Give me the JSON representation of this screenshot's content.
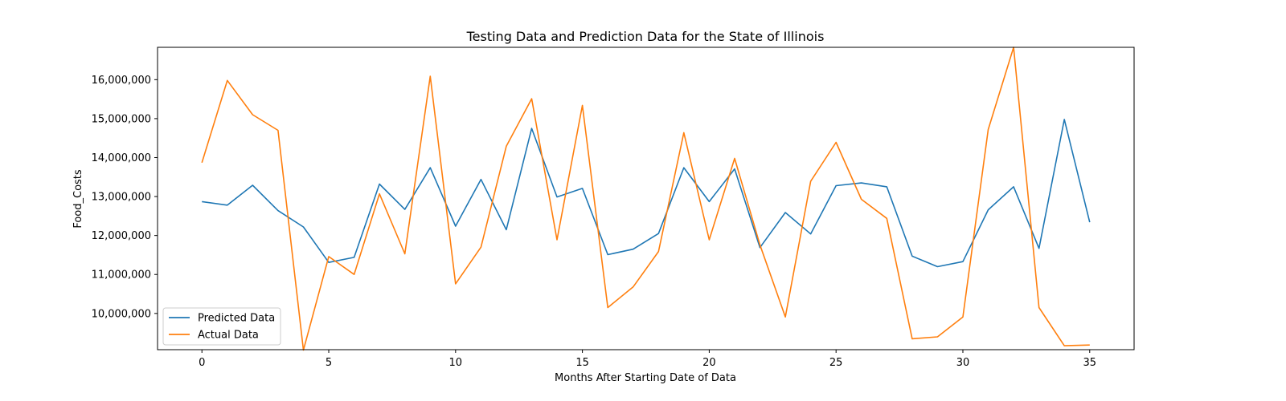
{
  "chart_data": {
    "type": "line",
    "title": "Testing Data and Prediction Data for the State of Illinois",
    "xlabel": "Months After Starting Date of Data",
    "ylabel": "Food_Costs",
    "xlim": [
      -1.75,
      36.75
    ],
    "ylim": [
      9070000,
      16830000
    ],
    "x_ticks": [
      0,
      5,
      10,
      15,
      20,
      25,
      30,
      35
    ],
    "y_ticks": [
      10000000,
      11000000,
      12000000,
      13000000,
      14000000,
      15000000,
      16000000
    ],
    "y_tick_labels": [
      "10,000,000",
      "11,000,000",
      "12,000,000",
      "13,000,000",
      "14,000,000",
      "15,000,000",
      "16,000,000"
    ],
    "legend_position": "bottom-left",
    "grid": false,
    "x": [
      0,
      1,
      2,
      3,
      4,
      5,
      6,
      7,
      8,
      9,
      10,
      11,
      12,
      13,
      14,
      15,
      16,
      17,
      18,
      19,
      20,
      21,
      22,
      23,
      24,
      25,
      26,
      27,
      28,
      29,
      30,
      31,
      32,
      33,
      34,
      35
    ],
    "series": [
      {
        "name": "Predicted Data",
        "color": "#1f77b4",
        "values": [
          12870000,
          12780000,
          13290000,
          12640000,
          12220000,
          11310000,
          11440000,
          13320000,
          12670000,
          13740000,
          12240000,
          13440000,
          12150000,
          14750000,
          12990000,
          13210000,
          11510000,
          11650000,
          12050000,
          13740000,
          12870000,
          13710000,
          11690000,
          12590000,
          12040000,
          13280000,
          13350000,
          13250000,
          11470000,
          11200000,
          11330000,
          12660000,
          13250000,
          11670000,
          14980000,
          12340000
        ]
      },
      {
        "name": "Actual Data",
        "color": "#ff7f0e",
        "values": [
          13870000,
          15980000,
          15100000,
          14700000,
          9060000,
          11460000,
          11000000,
          13070000,
          11530000,
          16090000,
          10760000,
          11700000,
          14290000,
          15510000,
          11890000,
          15340000,
          10150000,
          10680000,
          11590000,
          14640000,
          11890000,
          13980000,
          11760000,
          9910000,
          13390000,
          14390000,
          12930000,
          12440000,
          9350000,
          9400000,
          9910000,
          14720000,
          16830000,
          10150000,
          9170000,
          9190000
        ]
      }
    ]
  }
}
